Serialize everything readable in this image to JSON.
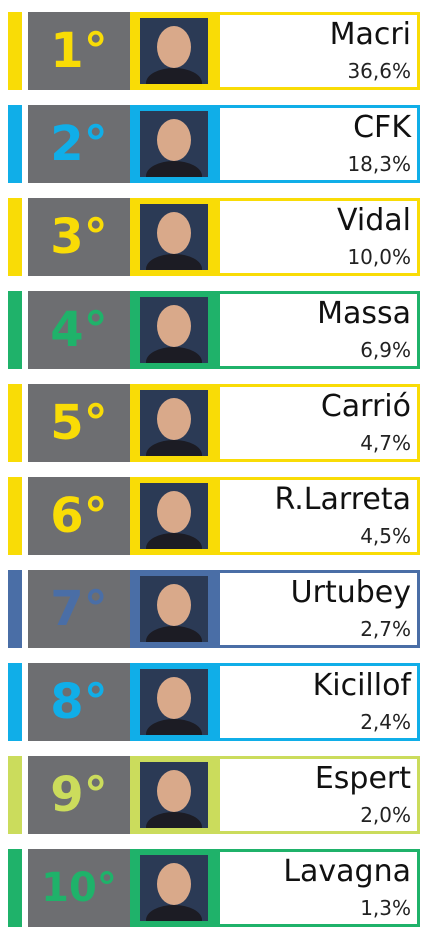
{
  "ranking": {
    "rows": [
      {
        "rank": "1°",
        "name": "Macri",
        "value": "36,6%",
        "color": "#f9dc06"
      },
      {
        "rank": "2°",
        "name": "CFK",
        "value": "18,3%",
        "color": "#10aee8"
      },
      {
        "rank": "3°",
        "name": "Vidal",
        "value": "10,0%",
        "color": "#f9dc06"
      },
      {
        "rank": "4°",
        "name": "Massa",
        "value": "6,9%",
        "color": "#1fb26a"
      },
      {
        "rank": "5°",
        "name": "Carrió",
        "value": "4,7%",
        "color": "#f9dc06"
      },
      {
        "rank": "6°",
        "name": "R.Larreta",
        "value": "4,5%",
        "color": "#f9dc06"
      },
      {
        "rank": "7°",
        "name": "Urtubey",
        "value": "2,7%",
        "color": "#4a6ea6"
      },
      {
        "rank": "8°",
        "name": "Kicillof",
        "value": "2,4%",
        "color": "#10aee8"
      },
      {
        "rank": "9°",
        "name": "Espert",
        "value": "2,0%",
        "color": "#cbdc5c"
      },
      {
        "rank": "10°",
        "name": "Lavagna",
        "value": "1,3%",
        "color": "#1fb26a"
      }
    ]
  }
}
